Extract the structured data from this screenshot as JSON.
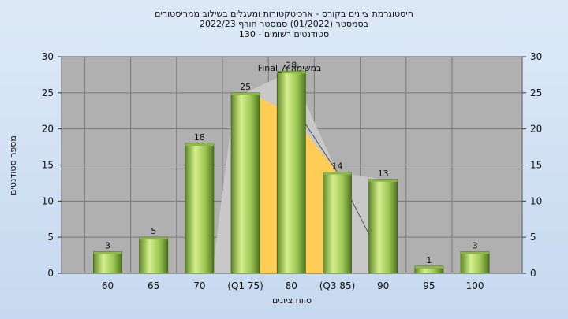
{
  "chart_data": {
    "type": "bar",
    "title": [
      "היסטוגרמת ציונים בקורס - ארכיטקטורות ומעגלים בשילוב ממריסטורים",
      "בסמסטר  (01/2022)  סמסטר חורף 2022/23",
      "130 - סטודנטים רשומים"
    ],
    "xlabel": "טווח ציונים",
    "ylabel": "מספר סטודנטים",
    "ylim": [
      0,
      30
    ],
    "yticks": [
      0,
      5,
      10,
      15,
      20,
      25,
      30
    ],
    "categories": [
      "60",
      "65",
      "70",
      "(Q1 75)",
      "80",
      "(Q3 85)",
      "90",
      "95",
      "100"
    ],
    "values": [
      3,
      5,
      18,
      25,
      28,
      14,
      13,
      1,
      3
    ],
    "series_name": "Final_A במשימה",
    "grid": true,
    "y_axis_both_sides": true,
    "colors": {
      "bar_light": "#d6ef8e",
      "bar_mid": "#9cc653",
      "bar_dark": "#557f22",
      "iqr_fill": "#ffcc55",
      "distribution_fill": "#c8c8c8",
      "plot_bg": "#b0b0b0",
      "grid": "#7a7a7a"
    }
  }
}
